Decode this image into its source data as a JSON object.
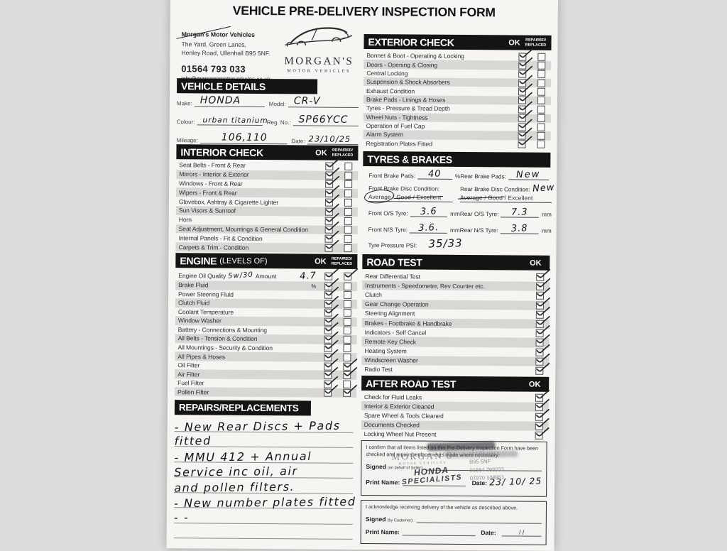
{
  "page": {
    "title": "VEHICLE PRE-DELIVERY INSPECTION FORM"
  },
  "dealer": {
    "name": "Morgan's Motor Vehicles",
    "address_line1": "The Yard, Green Lanes,",
    "address_line2": "Henley Road, Ullenhall B95 5NF.",
    "phone": "01564 793 033",
    "email": "info@morgansmotorvehicles.co.uk",
    "logo_name": "MORGAN'S",
    "logo_subtitle": "MOTOR VEHICLES"
  },
  "col_headers": {
    "ok": "OK",
    "repaired": "REPAIRED/",
    "replaced": "REPLACED"
  },
  "vehicle_details": {
    "header": "VEHICLE DETAILS",
    "make_label": "Make:",
    "make": "HONDA",
    "model_label": "Model:",
    "model": "CR-V",
    "colour_label": "Colour:",
    "colour": "urban titanium",
    "reg_label": "Reg. No.:",
    "reg": "SP66YCC",
    "mileage_label": "Mileage:",
    "mileage": "106,110",
    "date_label": "Date:",
    "date": "23/10/25"
  },
  "interior_check": {
    "header": "INTERIOR CHECK",
    "items": [
      {
        "label": "Seat Belts - Front & Rear",
        "ok": true,
        "rr": false
      },
      {
        "label": "Mirrors - Interior & Exterior",
        "ok": true,
        "rr": false
      },
      {
        "label": "Windows - Front & Rear",
        "ok": true,
        "rr": false
      },
      {
        "label": "Wipers - Front & Rear",
        "ok": true,
        "rr": false
      },
      {
        "label": "Glovebox, Ashtray & Cigarette Lighter",
        "ok": true,
        "rr": false
      },
      {
        "label": "Sun Visors & Sunroof",
        "ok": true,
        "rr": false
      },
      {
        "label": "Horn",
        "ok": true,
        "rr": false
      },
      {
        "label": "Seat Adjustment, Mountings & General Condition",
        "ok": true,
        "rr": false
      },
      {
        "label": "Internal Panels - Fit & Condition",
        "ok": true,
        "rr": false
      },
      {
        "label": "Carpets & Trim - Condition",
        "ok": true,
        "rr": false
      }
    ]
  },
  "engine": {
    "header": "ENGINE",
    "header_sub": "(LEVELS OF)",
    "items": [
      {
        "label": "Engine Oil Quality",
        "hw1": "5w/30",
        "mid": "Amount",
        "hw2": "4.7",
        "ok": true,
        "rr": true
      },
      {
        "label": "Brake Fluid",
        "note": "%",
        "ok": true,
        "rr": false
      },
      {
        "label": "Power Steering Fluid",
        "ok": true,
        "rr": false
      },
      {
        "label": "Clutch Fluid",
        "ok": true,
        "rr": false
      },
      {
        "label": "Coolant Temperature",
        "ok": true,
        "rr": false
      },
      {
        "label": "Window Washer",
        "ok": true,
        "rr": false
      },
      {
        "label": "Battery - Connections & Mounting",
        "ok": true,
        "rr": false
      },
      {
        "label": "All Belts - Tension & Condition",
        "ok": true,
        "rr": false
      },
      {
        "label": "All Mountings - Security & Condition",
        "ok": true,
        "rr": false
      },
      {
        "label": "All Pipes & Hoses",
        "ok": true,
        "rr": false
      },
      {
        "label": "Oil Filter",
        "ok": true,
        "rr": true
      },
      {
        "label": "Air Filter",
        "ok": true,
        "rr": true
      },
      {
        "label": "Fuel Filter",
        "ok": true,
        "rr": false
      },
      {
        "label": "Pollen Filter",
        "ok": true,
        "rr": true
      }
    ]
  },
  "repairs": {
    "header": "REPAIRS/REPLACEMENTS",
    "lines": [
      "- New Rear Discs + Pads",
      "fitted",
      "- MMU 412 + Annual",
      "Service inc oil, air",
      "and pollen filters.",
      "- New number plates fitted",
      "- -",
      ""
    ]
  },
  "exterior_check": {
    "header": "EXTERIOR CHECK",
    "items": [
      {
        "label": "Bonnet & Boot - Operating & Locking",
        "ok": true,
        "rr": false
      },
      {
        "label": "Doors - Opening & Closing",
        "ok": true,
        "rr": false
      },
      {
        "label": "Central Locking",
        "ok": true,
        "rr": false
      },
      {
        "label": "Suspension & Shock Absorbers",
        "ok": true,
        "rr": false
      },
      {
        "label": "Exhaust Condition",
        "ok": true,
        "rr": false
      },
      {
        "label": "Brake Pads - Linings & Hoses",
        "ok": true,
        "rr": false
      },
      {
        "label": "Tyres - Pressure & Tread Depth",
        "ok": true,
        "rr": false
      },
      {
        "label": "Wheel Nuts - Tightness",
        "ok": true,
        "rr": false
      },
      {
        "label": "Operation of Fuel Cap",
        "ok": true,
        "rr": false
      },
      {
        "label": "Alarm System",
        "ok": true,
        "rr": false
      },
      {
        "label": "Registration Plates Fitted",
        "ok": true,
        "rr": false
      }
    ]
  },
  "tyres_brakes": {
    "header": "TYRES & BRAKES",
    "front_pads_label": "Front Brake Pads:",
    "front_pads": "40",
    "front_pads_unit": "%",
    "rear_pads_label": "Rear Brake Pads:",
    "rear_pads": "New",
    "front_disc_label": "Front Brake Disc Condition:",
    "rear_disc_label": "Rear Brake Disc Condition:",
    "rear_disc": "New",
    "opt_average": "Average",
    "opt_good": "Good",
    "opt_excellent": "Excellent",
    "opt_sep": "/",
    "front_os_label": "Front O/S Tyre:",
    "front_os": "3.6",
    "front_ns_label": "Front N/S Tyre:",
    "front_ns": "3.6.",
    "rear_os_label": "Rear O/S Tyre:",
    "rear_os": "7.3",
    "rear_ns_label": "Rear N/S Tyre:",
    "rear_ns": "3.8",
    "unit_mm": "mm",
    "psi_label": "Tyre Pressure PSI:",
    "psi": "35/33"
  },
  "road_test": {
    "header": "ROAD TEST",
    "items": [
      {
        "label": "Rear Differential Test",
        "ok": true
      },
      {
        "label": "Instruments - Speedometer, Rev Counter etc.",
        "ok": true
      },
      {
        "label": "Clutch",
        "ok": true
      },
      {
        "label": "Gear Change Operation",
        "ok": true
      },
      {
        "label": "Steering Alignment",
        "ok": true
      },
      {
        "label": "Brakes - Footbrake & Handbrake",
        "ok": true
      },
      {
        "label": "Indicators - Self Cancel",
        "ok": true
      },
      {
        "label": "Remote Key Check",
        "ok": true
      },
      {
        "label": "Heating System",
        "ok": true
      },
      {
        "label": "Windscreen Washer",
        "ok": true
      },
      {
        "label": "Radio Test",
        "ok": true
      }
    ]
  },
  "after_road_test": {
    "header": "AFTER ROAD TEST",
    "items": [
      {
        "label": "Check for Fluid Leaks",
        "ok": true
      },
      {
        "label": "Interior & Exterior Cleaned",
        "ok": true
      },
      {
        "label": "Spare Wheel & Tools Cleaned",
        "ok": true
      },
      {
        "label": "Documents Checked",
        "ok": true
      },
      {
        "label": "Locking Wheel Nut Present",
        "ok": true
      }
    ]
  },
  "seller_confirmation": {
    "statement": "I confirm that all items listed on this Pre-Delivery Inspection Form have been checked and repairs/replacements made where necessary.",
    "signed_label": "Signed",
    "signed_sub": "(on behalf of Seller):",
    "print_label": "Print Name:",
    "date_label": "Date:",
    "date": "23/ 10/ 25",
    "stamp": {
      "name": "MORGAN'S",
      "sub": "MOTOR VEHICLES",
      "line1": "HONDA",
      "line2": "SPECIALISTS",
      "loc": "ULLENHALL",
      "post": "B95 5NF",
      "tel": "01564 793033",
      "mob": "07970 108951"
    }
  },
  "customer_ack": {
    "statement": "I acknowledge receiving delivery of the vehicle as described above.",
    "signed_label": "Signed",
    "signed_sub": "(by Customer):",
    "print_label": "Print Name:",
    "date_label": "Date:",
    "date": "/      /"
  }
}
